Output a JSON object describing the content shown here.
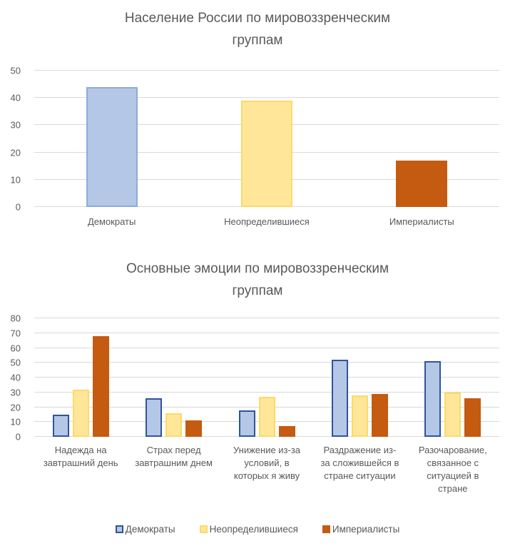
{
  "colors": {
    "background": "#FFFFFF",
    "title_text": "#595959",
    "axis_text": "#595959",
    "gridline": "#D9D9D9",
    "democrats_fill": "#B4C7E7",
    "democrats_border_light": "#8FAADC",
    "democrats_border_dark": "#2F5597",
    "undecided_fill": "#FFE699",
    "undecided_border": "#FFD966",
    "imperialists_fill": "#C55A11"
  },
  "chart_data": [
    {
      "type": "bar",
      "title": "Население России по мировоззренческим группам",
      "categories": [
        "Демократы",
        "Неопределившиеся",
        "Империалисты"
      ],
      "values": [
        44,
        39,
        17
      ],
      "bar_styles": [
        {
          "key": "democrats",
          "fill": "#B4C7E7",
          "border": "#8FAADC"
        },
        {
          "key": "undecided",
          "fill": "#FFE699",
          "border": "#FFD966"
        },
        {
          "key": "imperialists",
          "fill": "#C55A11",
          "border": "#C55A11"
        }
      ],
      "ylim": [
        0,
        50
      ],
      "ytick_step": 10,
      "grid": true,
      "legend": "none"
    },
    {
      "type": "bar",
      "title": "Основные эмоции по мировоззренческим группам",
      "categories": [
        "Надежда на завтрашний день",
        "Страх перед завтрашним днем",
        "Унижение из-за условий, в которых я живу",
        "Раздражение из-за сложившейся в стране ситуации",
        "Разочарование, связанное с ситуацией в стране"
      ],
      "series": [
        {
          "key": "democrats",
          "name": "Демократы",
          "fill": "#B4C7E7",
          "border": "#2F5597",
          "values": [
            15,
            26,
            18,
            52,
            51
          ]
        },
        {
          "key": "undecided",
          "name": "Неопределившиеся",
          "fill": "#FFE699",
          "border": "#FFD966",
          "values": [
            32,
            16,
            27,
            28,
            30
          ]
        },
        {
          "key": "imperialists",
          "name": "Империалисты",
          "fill": "#C55A11",
          "border": "#C55A11",
          "values": [
            68,
            11,
            7,
            29,
            26
          ]
        }
      ],
      "ylim": [
        0,
        80
      ],
      "ytick_step": 10,
      "grid": true,
      "legend": "bottom"
    }
  ]
}
